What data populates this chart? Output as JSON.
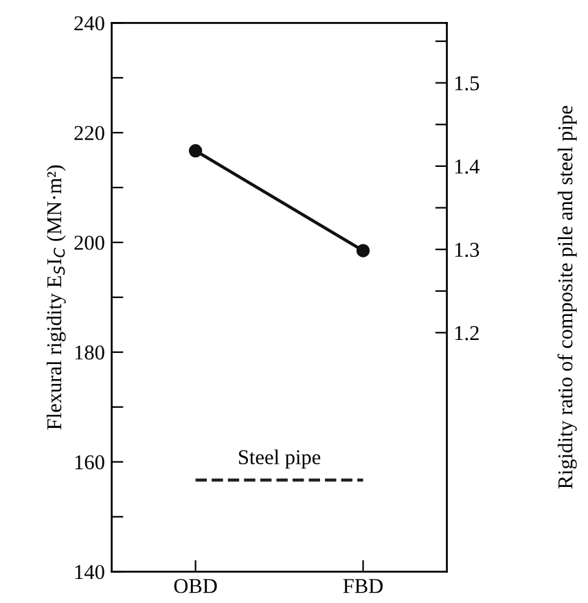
{
  "chart_data": {
    "type": "line",
    "categories": [
      "OBD",
      "FBD"
    ],
    "series": [
      {
        "color": "#111111",
        "marker": "circle",
        "line_style": "solid",
        "values": [
          216.7,
          198.5
        ]
      },
      {
        "name": "Steel pipe",
        "color": "#222222",
        "marker": "none",
        "line_style": "dashed",
        "values": [
          156.7,
          156.7
        ]
      }
    ],
    "ylabel": "Flexural rigidity E$_{S}$I$_{C}$ (MN·m²)",
    "y2label": "Rigidity ratio of composite pile and steel pipe",
    "ylim": [
      140,
      240
    ],
    "yticks": [
      140,
      {
        "value": 150,
        "label": null
      },
      160,
      {
        "value": 170,
        "label": null
      },
      180,
      {
        "value": 190,
        "label": null
      },
      200,
      {
        "value": 210,
        "label": null
      },
      220,
      {
        "value": 230,
        "label": null
      },
      240
    ],
    "y2lim": [
      0.913,
      1.572
    ],
    "y2ticks": [
      1.2,
      {
        "value": 1.25,
        "label": null
      },
      1.3,
      {
        "value": 1.35,
        "label": null
      },
      1.4,
      {
        "value": 1.45,
        "label": null
      },
      1.5,
      {
        "value": 1.55,
        "label": null
      }
    ],
    "grid": false,
    "legend": false
  }
}
